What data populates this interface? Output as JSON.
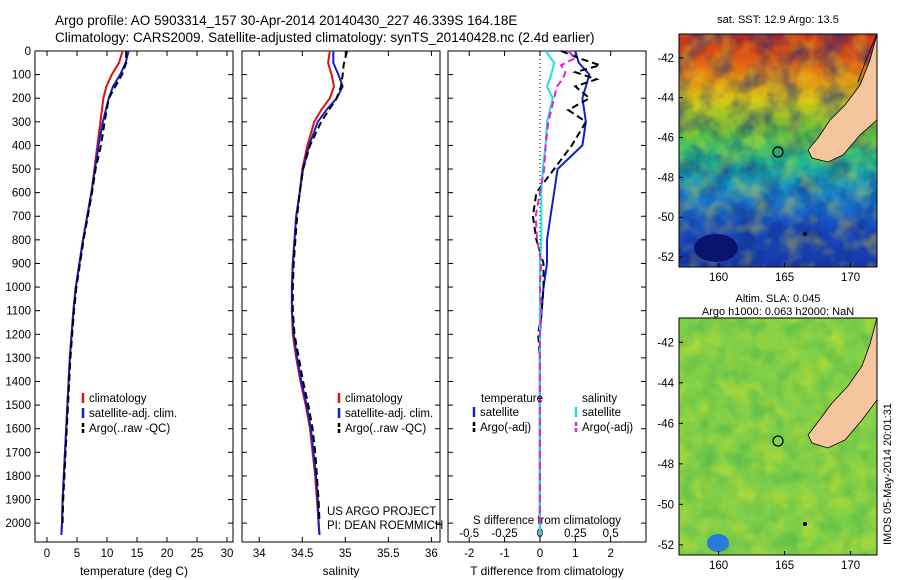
{
  "header": {
    "line1": "Argo profile: AO 5903314_157 30-Apr-2014 20140430_227 46.339S 164.18E",
    "line2": "Climatology: CARS2009. Satellite-adjusted climatology: synTS_20140428.nc (2.4d earlier)"
  },
  "colors": {
    "climatology": "#e01010",
    "satellite": "#1020d0",
    "argo": "#000000",
    "sal_satellite": "#20e0e0",
    "sal_argo": "#e020e0",
    "land": "#f5c59e"
  },
  "credits": {
    "line1": "US ARGO PROJECT",
    "line2": "PI: DEAN ROEMMICH"
  },
  "stamp": "IMOS 05-May-2014 20:01:31",
  "chart_data": [
    {
      "id": "temperature",
      "type": "line",
      "xlabel": "temperature (deg C)",
      "xlim": [
        -2,
        31
      ],
      "xticks": [
        "0",
        "5",
        "10",
        "15",
        "20",
        "25",
        "30"
      ],
      "ylim": [
        2080,
        0
      ],
      "yticks": [
        "0",
        "100",
        "200",
        "300",
        "400",
        "500",
        "600",
        "700",
        "800",
        "900",
        "1000",
        "1100",
        "1200",
        "1300",
        "1400",
        "1500",
        "1600",
        "1700",
        "1800",
        "1900",
        "2000"
      ],
      "legend": {
        "position": "lower-center",
        "entries": [
          "climatology",
          "satellite-adj. clim.",
          "Argo(..raw -QC)"
        ]
      },
      "series": [
        {
          "name": "climatology",
          "depth": [
            0,
            50,
            100,
            150,
            200,
            300,
            400,
            500,
            600,
            700,
            800,
            900,
            1000,
            1100,
            1200,
            1300,
            1400,
            1500,
            1600,
            1700,
            1800,
            1900,
            2000,
            2050
          ],
          "values": [
            12.6,
            12.0,
            10.8,
            9.9,
            9.4,
            8.9,
            8.4,
            7.9,
            7.4,
            6.7,
            6.0,
            5.4,
            4.8,
            4.4,
            4.1,
            3.8,
            3.6,
            3.4,
            3.2,
            3.0,
            2.8,
            2.6,
            2.5,
            2.4
          ]
        },
        {
          "name": "satellite-adj. clim.",
          "depth": [
            0,
            50,
            100,
            150,
            200,
            300,
            400,
            500,
            600,
            700,
            800,
            900,
            1000,
            1100,
            1200,
            1300,
            1400,
            1500,
            1600,
            1700,
            1800,
            1900,
            2000,
            2050
          ],
          "values": [
            13.6,
            13.1,
            12.2,
            11.0,
            10.3,
            9.3,
            8.6,
            8.0,
            7.4,
            6.7,
            6.0,
            5.4,
            4.8,
            4.4,
            4.1,
            3.8,
            3.6,
            3.4,
            3.2,
            3.0,
            2.8,
            2.6,
            2.5,
            2.4
          ]
        },
        {
          "name": "Argo(..raw -QC)",
          "dashed": true,
          "depth": [
            0,
            50,
            100,
            150,
            200,
            300,
            400,
            500,
            600,
            700,
            800,
            900,
            1000,
            1100,
            1200,
            1300,
            1400,
            1500,
            1600,
            1700,
            1800,
            1900,
            2000
          ],
          "values": [
            13.2,
            13.2,
            12.5,
            11.4,
            10.3,
            9.6,
            9.0,
            8.1,
            7.5,
            6.8,
            6.1,
            5.5,
            4.9,
            4.5,
            4.2,
            3.9,
            3.7,
            3.5,
            3.3,
            3.1,
            2.9,
            2.7,
            2.6
          ]
        }
      ]
    },
    {
      "id": "salinity",
      "type": "line",
      "xlabel": "salinity",
      "xlim": [
        33.8,
        36.1
      ],
      "xticks": [
        "34",
        "34.5",
        "35",
        "35.5",
        "36"
      ],
      "ylim": [
        2080,
        0
      ],
      "legend": {
        "position": "lower-center",
        "entries": [
          "climatology",
          "satellite-adj. clim.",
          "Argo(..raw -QC)"
        ]
      },
      "series": [
        {
          "name": "climatology",
          "depth": [
            0,
            50,
            100,
            150,
            200,
            250,
            300,
            400,
            500,
            600,
            700,
            800,
            900,
            1000,
            1100,
            1200,
            1300,
            1400,
            1500,
            1600,
            1700,
            1800,
            1900,
            2000,
            2050
          ],
          "values": [
            34.82,
            34.8,
            34.84,
            34.87,
            34.82,
            34.72,
            34.64,
            34.56,
            34.5,
            34.47,
            34.43,
            34.41,
            34.39,
            34.38,
            34.38,
            34.39,
            34.43,
            34.48,
            34.54,
            34.59,
            34.62,
            34.65,
            34.67,
            34.69,
            34.7
          ]
        },
        {
          "name": "satellite-adj. clim.",
          "depth": [
            0,
            50,
            100,
            150,
            200,
            250,
            300,
            400,
            500,
            600,
            700,
            800,
            900,
            1000,
            1100,
            1200,
            1300,
            1400,
            1500,
            1600,
            1700,
            1800,
            1900,
            2000,
            2050
          ],
          "values": [
            34.86,
            34.86,
            34.92,
            34.97,
            34.9,
            34.78,
            34.68,
            34.58,
            34.51,
            34.47,
            34.43,
            34.41,
            34.39,
            34.38,
            34.38,
            34.4,
            34.44,
            34.49,
            34.55,
            34.6,
            34.63,
            34.66,
            34.68,
            34.69,
            34.7
          ]
        },
        {
          "name": "Argo(..raw -QC)",
          "dashed": true,
          "depth": [
            0,
            30,
            60,
            100,
            150,
            200,
            300,
            400,
            500,
            600,
            700,
            800,
            900,
            1000,
            1100,
            1200,
            1300,
            1400,
            1500,
            1600,
            1700,
            1800,
            1900,
            2000
          ],
          "values": [
            35.02,
            35.0,
            34.98,
            34.97,
            34.95,
            34.9,
            34.72,
            34.59,
            34.51,
            34.47,
            34.44,
            34.42,
            34.4,
            34.39,
            34.39,
            34.41,
            34.46,
            34.51,
            34.57,
            34.62,
            34.65,
            34.67,
            34.69,
            34.7
          ]
        }
      ]
    },
    {
      "id": "differences",
      "type": "line",
      "xlabel": "T difference from climatology",
      "xlabel_top": "S difference from climatology",
      "xlim": [
        -2.6,
        3.0
      ],
      "xticks": [
        "-2",
        "-1",
        "0",
        "1",
        "2"
      ],
      "xticks_top": [
        "-0.5",
        "-0.25",
        "0",
        "0.25",
        "0.5"
      ],
      "ylim": [
        2080,
        0
      ],
      "legend": {
        "position": "lower-center",
        "temperature_title": "temperature",
        "salinity_title": "salinity",
        "entries": [
          "satellite",
          "Argo(-adj)",
          "satellite",
          "Argo(-adj)"
        ]
      },
      "series": [
        {
          "name": "satellite",
          "group": "temperature",
          "depth": [
            0,
            50,
            100,
            150,
            200,
            300,
            400,
            500,
            600,
            700,
            800,
            900,
            1000,
            1100,
            1200,
            1300,
            1400,
            1500,
            1600,
            1700,
            1800,
            1900,
            2000,
            2050
          ],
          "values": [
            1.0,
            1.1,
            1.4,
            1.3,
            1.2,
            1.3,
            1.2,
            0.5,
            0.4,
            0.3,
            0.2,
            0.2,
            0.1,
            0.05,
            0,
            0,
            0,
            0,
            0,
            0,
            0,
            0,
            0,
            0
          ]
        },
        {
          "name": "Argo(-adj)",
          "group": "temperature",
          "dashed": true,
          "depth": [
            0,
            30,
            60,
            90,
            120,
            150,
            200,
            250,
            300,
            400,
            500,
            600,
            700,
            800,
            900,
            1000,
            1100,
            1200,
            1300,
            1400,
            1500,
            1600,
            1700,
            1800,
            1900,
            2000
          ],
          "values": [
            0.6,
            1.1,
            1.7,
            1.0,
            1.6,
            1.0,
            1.4,
            0.8,
            1.3,
            0.9,
            0.4,
            -0.1,
            -0.2,
            -0.1,
            0.1,
            0.1,
            0.05,
            -0.05,
            0,
            0,
            0,
            0,
            0,
            0,
            0,
            0
          ]
        },
        {
          "name": "satellite",
          "group": "salinity",
          "depth": [
            0,
            50,
            100,
            150,
            200,
            300,
            400,
            500,
            600,
            700,
            800,
            900,
            1000,
            1200,
            1400,
            1600,
            1800,
            2000,
            2050
          ],
          "values": [
            0.04,
            0.1,
            0.08,
            0.05,
            0.09,
            0.05,
            0.04,
            0.02,
            0.01,
            0.01,
            0.01,
            0,
            0,
            0,
            0,
            0,
            0,
            0,
            0
          ]
        },
        {
          "name": "Argo(-adj)",
          "group": "salinity",
          "dashed": true,
          "depth": [
            0,
            30,
            60,
            90,
            120,
            150,
            200,
            300,
            400,
            500,
            600,
            700,
            800,
            900,
            1000,
            1100,
            1200,
            1400,
            1600,
            1800,
            2000
          ],
          "values": [
            0.2,
            0.25,
            0.15,
            0.18,
            0.16,
            0.12,
            0.1,
            0.06,
            0.04,
            0.03,
            0.0,
            -0.03,
            -0.02,
            0.01,
            0.0,
            0.01,
            0.0,
            0,
            0,
            0,
            0
          ]
        }
      ]
    },
    {
      "id": "sst_map",
      "type": "heatmap",
      "title": "sat. SST: 12.9  Argo: 13.5",
      "xticks": [
        "160",
        "165",
        "170"
      ],
      "yticks": [
        "-42",
        "-44",
        "-46",
        "-48",
        "-50",
        "-52"
      ],
      "xlim": [
        157,
        172
      ],
      "ylim": [
        -52.5,
        -40.8
      ],
      "marker": {
        "lon": 164.18,
        "lat": -46.339
      }
    },
    {
      "id": "sla_map",
      "type": "heatmap",
      "title_line1": "Altim. SLA: 0.045",
      "title_line2": "Argo h1000: 0.063  h2000: NaN",
      "xticks": [
        "160",
        "165",
        "170"
      ],
      "yticks": [
        "-42",
        "-44",
        "-46",
        "-48",
        "-50",
        "-52"
      ],
      "xlim": [
        157,
        172
      ],
      "ylim": [
        -52.5,
        -40.8
      ],
      "marker": {
        "lon": 164.18,
        "lat": -46.339
      }
    }
  ]
}
